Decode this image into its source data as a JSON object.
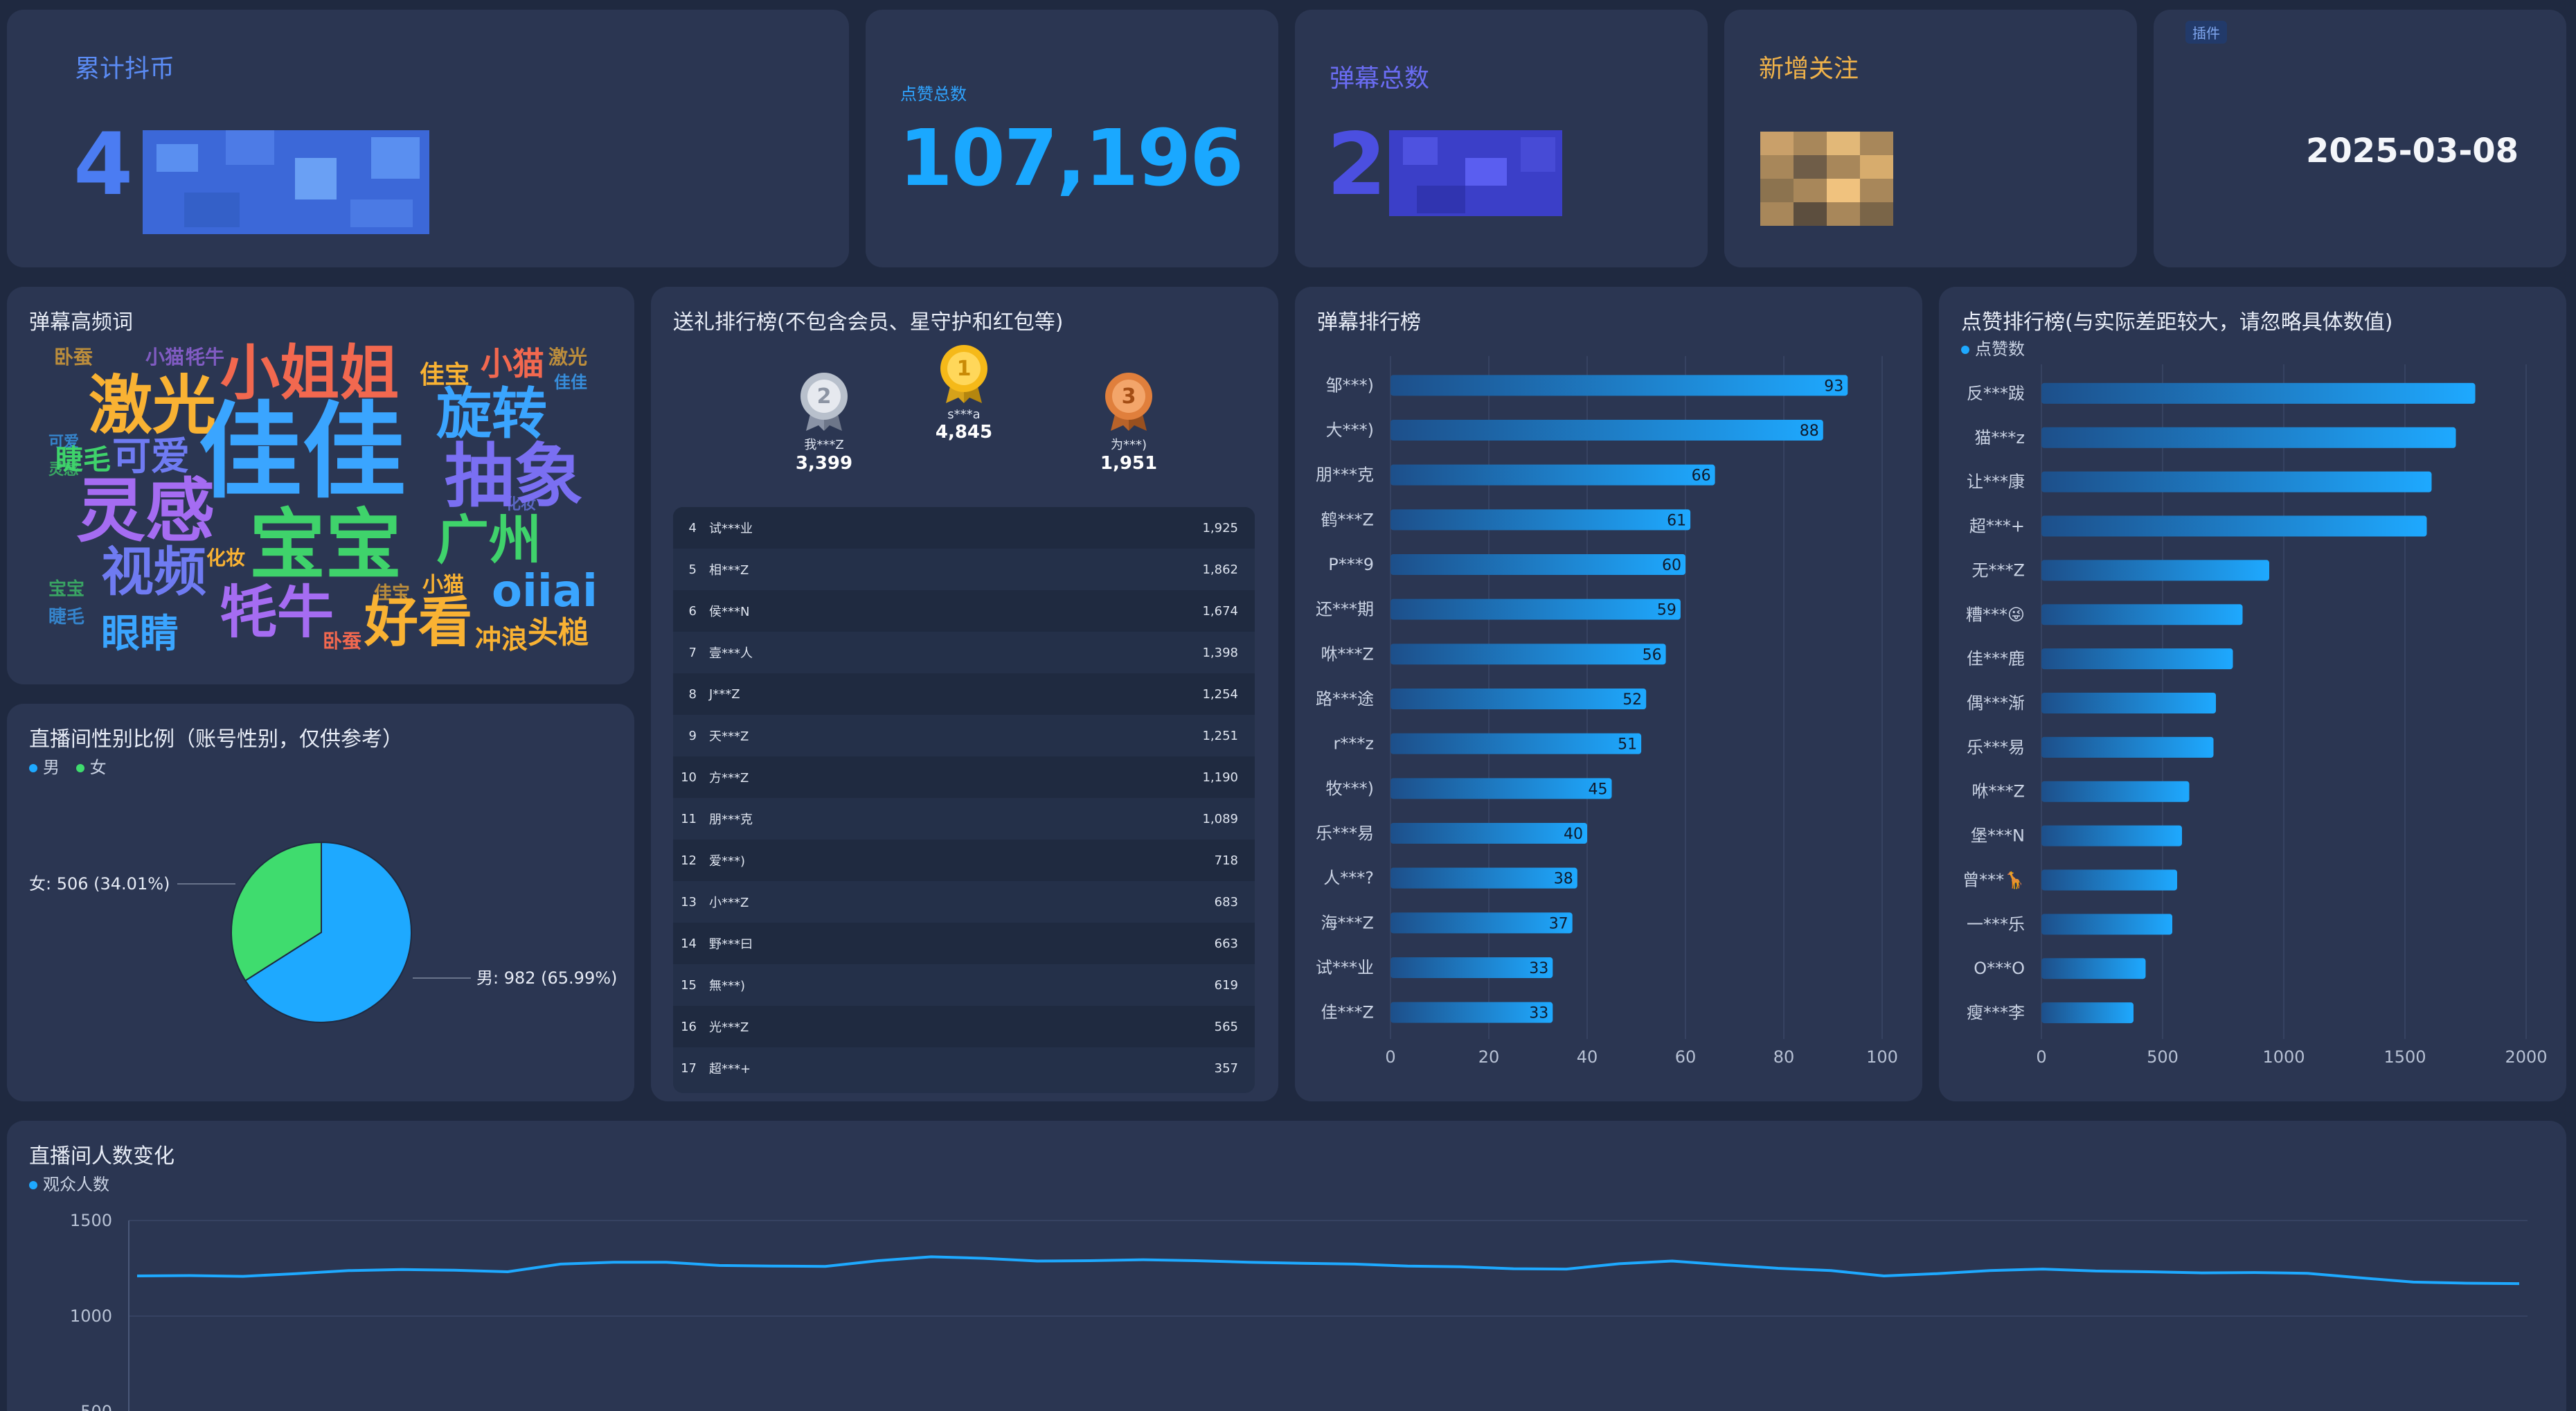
{
  "stats": {
    "coins": {
      "label": "累计抖币",
      "value": "4"
    },
    "likes": {
      "label": "点赞总数",
      "value": "107,196"
    },
    "danmaku": {
      "label": "弹幕总数",
      "value": "2"
    },
    "follows": {
      "label": "新增关注"
    },
    "date": {
      "badge": "插件",
      "value": "2025-03-08"
    }
  },
  "wordcloud": {
    "title": "弹幕高频词",
    "words": [
      {
        "t": "佳佳",
        "c": "#3aa5ff"
      },
      {
        "t": "小姐姐",
        "c": "#f2684f"
      },
      {
        "t": "激光",
        "c": "#f9b233"
      },
      {
        "t": "灵感",
        "c": "#a56cf2"
      },
      {
        "t": "旋转",
        "c": "#3aa5ff"
      },
      {
        "t": "抽象",
        "c": "#7a6ff2"
      },
      {
        "t": "宝宝",
        "c": "#3fd36b"
      },
      {
        "t": "广州",
        "c": "#3fd36b"
      },
      {
        "t": "视频",
        "c": "#6f7bf2"
      },
      {
        "t": "牦牛",
        "c": "#a56cf2"
      },
      {
        "t": "好看",
        "c": "#f9b233"
      },
      {
        "t": "oiiai",
        "c": "#3aa5ff"
      },
      {
        "t": "眼睛",
        "c": "#3aa5ff"
      },
      {
        "t": "可爱",
        "c": "#6f7bf2"
      },
      {
        "t": "睫毛",
        "c": "#3fd36b"
      },
      {
        "t": "小猫",
        "c": "#f2684f"
      },
      {
        "t": "佳宝",
        "c": "#f9b233"
      },
      {
        "t": "冲浪",
        "c": "#f9b233"
      },
      {
        "t": "头槌",
        "c": "#f9b233"
      },
      {
        "t": "化妆",
        "c": "#f9b233"
      },
      {
        "t": "卧蚕",
        "c": "#f2684f"
      }
    ]
  },
  "gifts": {
    "title": "送礼排行榜(不包含会员、星守护和红包等)",
    "podium": [
      {
        "rank": "2",
        "name": "我***Z",
        "value": "3,399"
      },
      {
        "rank": "1",
        "name": "s***a",
        "value": "4,845"
      },
      {
        "rank": "3",
        "name": "为***)",
        "value": "1,951"
      }
    ],
    "rows": [
      {
        "rank": "4",
        "name": "试***业",
        "value": "1,925"
      },
      {
        "rank": "5",
        "name": "相***Z",
        "value": "1,862"
      },
      {
        "rank": "6",
        "name": "侯***N",
        "value": "1,674"
      },
      {
        "rank": "7",
        "name": "壹***人",
        "value": "1,398"
      },
      {
        "rank": "8",
        "name": "J***Z",
        "value": "1,254"
      },
      {
        "rank": "9",
        "name": "天***Z",
        "value": "1,251"
      },
      {
        "rank": "10",
        "name": "方***Z",
        "value": "1,190"
      },
      {
        "rank": "11",
        "name": "朋***克",
        "value": "1,089"
      },
      {
        "rank": "12",
        "name": "爱***)",
        "value": "718"
      },
      {
        "rank": "13",
        "name": "小***Z",
        "value": "683"
      },
      {
        "rank": "14",
        "name": "野***曰",
        "value": "663"
      },
      {
        "rank": "15",
        "name": "無***)",
        "value": "619"
      },
      {
        "rank": "16",
        "name": "光***Z",
        "value": "565"
      },
      {
        "rank": "17",
        "name": "超***+",
        "value": "357"
      }
    ]
  },
  "gender": {
    "title": "直播间性别比例（账号性别，仅供参考）",
    "legend": [
      "男",
      "女"
    ],
    "colors": {
      "male": "#1ea9ff",
      "female": "#3fdc6e"
    },
    "labels": {
      "female": "女: 506 (34.01%)",
      "male": "男: 982 (65.99%)"
    },
    "chart_data": {
      "type": "pie",
      "categories": [
        "男",
        "女"
      ],
      "values": [
        982,
        506
      ]
    }
  },
  "danmaku_rank": {
    "title": "弹幕排行榜",
    "chart_data": {
      "type": "bar",
      "orientation": "horizontal",
      "categories": [
        "邹***)",
        "大***)",
        "朋***克",
        "鹤***Z",
        "P***9",
        "还***期",
        "咻***Z",
        "路***途",
        "r***z",
        "牧***)",
        "乐***易",
        "人***?",
        "海***Z",
        "试***业",
        "佳***Z"
      ],
      "values": [
        93,
        88,
        66,
        61,
        60,
        59,
        56,
        52,
        51,
        45,
        40,
        38,
        37,
        33,
        33
      ],
      "xlim": [
        0,
        100
      ],
      "xticks": [
        "0",
        "20",
        "40",
        "60",
        "80",
        "100"
      ]
    }
  },
  "like_rank": {
    "title": "点赞排行榜(与实际差距较大，请忽略具体数值)",
    "legend": "点赞数",
    "chart_data": {
      "type": "bar",
      "orientation": "horizontal",
      "categories": [
        "反***跋",
        "猫***z",
        "让***康",
        "超***+",
        "无***Z",
        "糟***😜",
        "佳***鹿",
        "偶***渐",
        "乐***易",
        "咻***Z",
        "堡***N",
        "曾***🦒",
        "一***乐",
        "O***O",
        "瘦***李"
      ],
      "values": [
        1790,
        1710,
        1610,
        1590,
        940,
        830,
        790,
        720,
        710,
        610,
        580,
        560,
        540,
        430,
        380
      ],
      "xlim": [
        0,
        2000
      ],
      "xticks": [
        "0",
        "500",
        "1000",
        "1500",
        "2000"
      ]
    }
  },
  "viewers": {
    "title": "直播间人数变化",
    "legend": "观众人数",
    "chart_data": {
      "type": "line",
      "yticks": [
        "1500",
        "1000",
        "500"
      ],
      "ylim": [
        500,
        1500
      ],
      "series": [
        {
          "name": "观众人数",
          "values": [
            1210,
            1212,
            1208,
            1222,
            1238,
            1244,
            1240,
            1232,
            1272,
            1282,
            1282,
            1265,
            1262,
            1260,
            1290,
            1310,
            1302,
            1288,
            1290,
            1295,
            1290,
            1282,
            1276,
            1272,
            1262,
            1258,
            1248,
            1246,
            1274,
            1288,
            1268,
            1250,
            1238,
            1210,
            1222,
            1238,
            1246,
            1236,
            1232,
            1226,
            1228,
            1224,
            1200,
            1178,
            1172,
            1170
          ]
        }
      ]
    }
  }
}
